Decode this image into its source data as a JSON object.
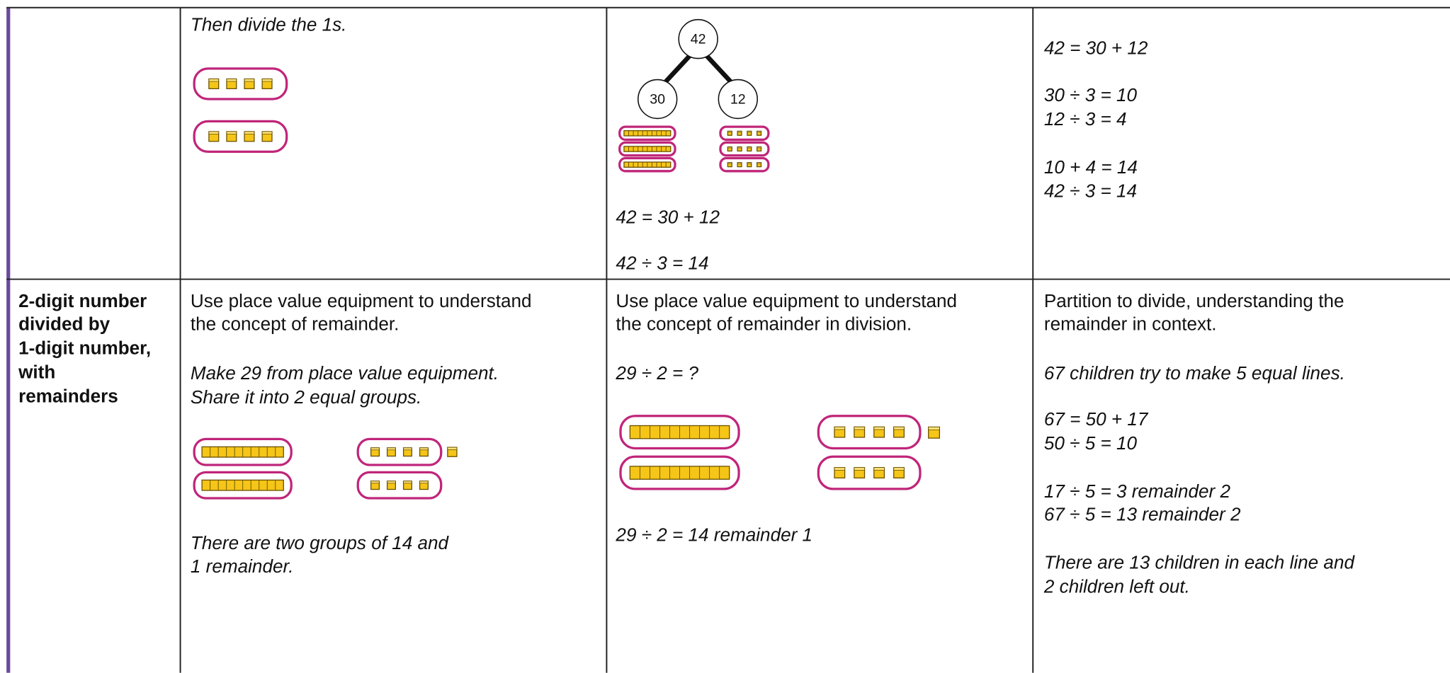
{
  "table": {
    "rows": [
      {
        "method_2": [
          "Then divide the 1s."
        ],
        "method_3": {
          "bond": [
            "42",
            "30",
            "12"
          ],
          "text": [
            "42 = 30 + 12",
            "42 ÷ 3 = 14"
          ]
        },
        "method_4": [
          "42 = 30 + 12",
          "30 ÷ 3 = 10",
          "12 ÷ 3 = 4",
          "10 + 4 = 14",
          "42 ÷ 3 = 14"
        ]
      },
      {
        "topic": [
          "2-digit number",
          "divided by",
          "1-digit number,",
          "with",
          "remainders"
        ],
        "method_2": [
          "Use place value equipment to understand",
          "the concept of remainder.",
          "Make 29 from place value equipment.",
          "Share it into 2 equal groups.",
          "There are two groups of 14 and",
          "1 remainder."
        ],
        "method_3": [
          "Use place value equipment to understand",
          "the concept of remainder in division.",
          "29 ÷ 2 = ?",
          "29 ÷ 2 =  14 remainder 1"
        ],
        "method_4": [
          "Partition to divide, understanding the",
          "remainder in context.",
          "67 children try to make 5 equal lines.",
          "67 = 50 + 17",
          "50 ÷ 5 = 10",
          "17 ÷ 5 = 3 remainder 2",
          "67 ÷ 5 = 13 remainder 2",
          "There are 13 children in each line and",
          "2 children left out."
        ]
      }
    ]
  }
}
